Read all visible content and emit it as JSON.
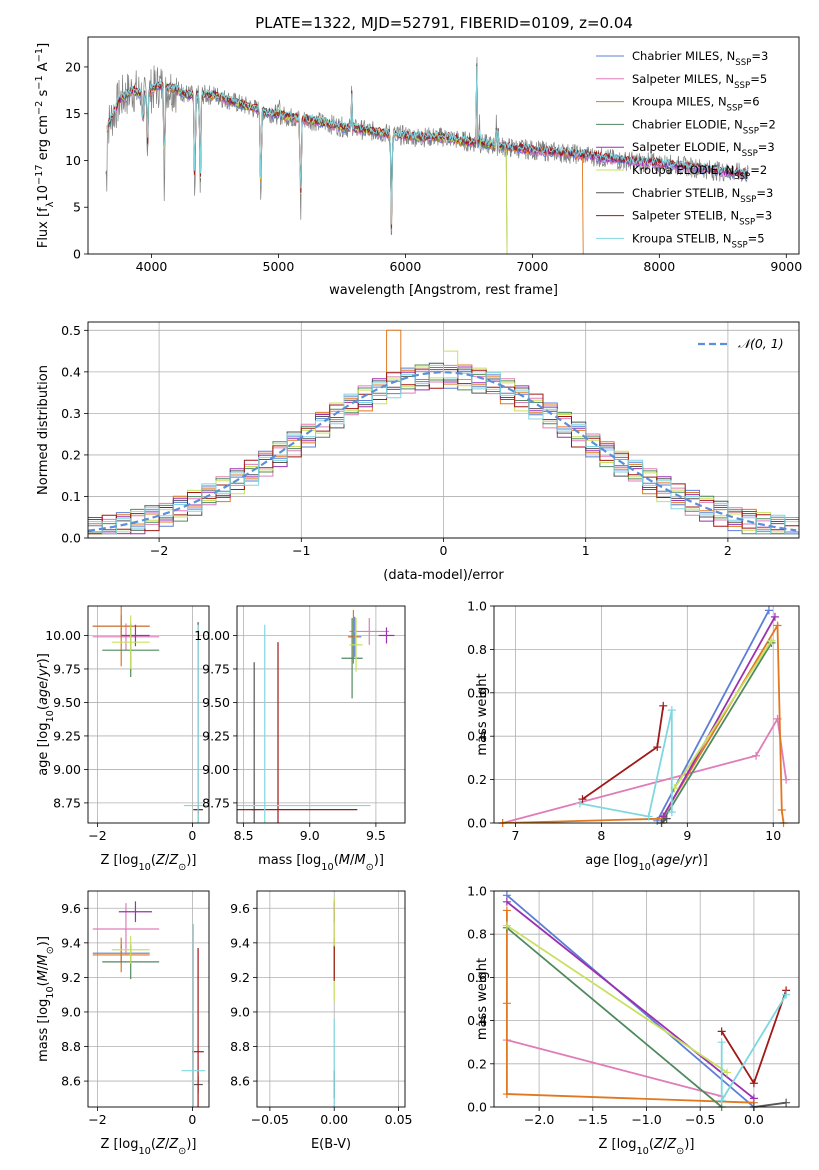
{
  "figure_title": "PLATE=1322, MJD=52791, FIBERID=0109, z=0.04",
  "colors": {
    "chabrier_miles": "#5b7fd6",
    "salpeter_miles": "#e07db8",
    "kroupa_miles": "#e07820",
    "chabrier_elodie": "#4f8a5e",
    "salpeter_elodie": "#9b30b0",
    "kroupa_elodie": "#c8e060",
    "chabrier_stelib": "#555555",
    "salpeter_stelib": "#a01818",
    "kroupa_stelib": "#7fd7e0",
    "spectrum": "#808080",
    "gaussian": "#5b8fd9",
    "grid": "#b0b0b0"
  },
  "chart_data": [
    {
      "id": "spectrum",
      "type": "line",
      "title": "PLATE=1322, MJD=52791, FIBERID=0109, z=0.04",
      "xlabel": "wavelength [Angstrom, rest frame]",
      "ylabel": "Flux [f_λ 10^-17 erg cm^-2 s^-1 A^-1]",
      "xlim": [
        3500,
        9100
      ],
      "ylim": [
        0,
        23.2
      ],
      "xticks": [
        4000,
        5000,
        6000,
        7000,
        8000,
        9000
      ],
      "yticks": [
        0,
        5,
        10,
        15,
        20
      ],
      "grid": false,
      "legend_position": "top-right",
      "legend": [
        {
          "main": "Chabrier MILES, N",
          "sub": "SSP",
          "tail": "=3",
          "color_key": "chabrier_miles"
        },
        {
          "main": "Salpeter MILES, N",
          "sub": "SSP",
          "tail": "=5",
          "color_key": "salpeter_miles"
        },
        {
          "main": "Kroupa MILES, N",
          "sub": "SSP",
          "tail": "=6",
          "color_key": "kroupa_miles"
        },
        {
          "main": "Chabrier ELODIE, N",
          "sub": "SSP",
          "tail": "=2",
          "color_key": "chabrier_elodie"
        },
        {
          "main": "Salpeter ELODIE, N",
          "sub": "SSP",
          "tail": "=3",
          "color_key": "salpeter_elodie"
        },
        {
          "main": "Kroupa ELODIE, N",
          "sub": "SSP",
          "tail": "=2",
          "color_key": "kroupa_elodie"
        },
        {
          "main": "Chabrier STELIB, N",
          "sub": "SSP",
          "tail": "=3",
          "color_key": "chabrier_stelib"
        },
        {
          "main": "Salpeter STELIB, N",
          "sub": "SSP",
          "tail": "=3",
          "color_key": "salpeter_stelib"
        },
        {
          "main": "Kroupa STELIB, N",
          "sub": "SSP",
          "tail": "=5",
          "color_key": "kroupa_stelib"
        }
      ],
      "continuum_points": [
        [
          3650,
          13.5
        ],
        [
          3750,
          16.5
        ],
        [
          3850,
          17.5
        ],
        [
          3950,
          17.0
        ],
        [
          4050,
          18.0
        ],
        [
          4150,
          17.8
        ],
        [
          4300,
          17.0
        ],
        [
          4500,
          17.0
        ],
        [
          4700,
          16.0
        ],
        [
          4900,
          15.2
        ],
        [
          5100,
          14.6
        ],
        [
          5300,
          14.2
        ],
        [
          5500,
          13.6
        ],
        [
          5700,
          13.2
        ],
        [
          5900,
          12.8
        ],
        [
          6100,
          12.5
        ],
        [
          6300,
          12.5
        ],
        [
          6500,
          12.0
        ],
        [
          6800,
          11.4
        ],
        [
          7100,
          11.0
        ],
        [
          7400,
          10.6
        ],
        [
          7700,
          10.0
        ],
        [
          8000,
          9.7
        ],
        [
          8300,
          9.2
        ],
        [
          8500,
          8.8
        ],
        [
          8700,
          8.6
        ]
      ],
      "dips": [
        [
          3934,
          4
        ],
        [
          3969,
          6
        ],
        [
          4102,
          11
        ],
        [
          4341,
          12
        ],
        [
          4384,
          11
        ],
        [
          4861,
          11
        ],
        [
          5175,
          11
        ],
        [
          5890,
          11
        ]
      ],
      "emission_lines": [
        [
          4861,
          17
        ],
        [
          5007,
          16.5
        ],
        [
          6563,
          22
        ],
        [
          6583,
          15
        ],
        [
          6716,
          14
        ],
        [
          6731,
          13.5
        ],
        [
          5577,
          18
        ]
      ],
      "model_cutoffs": [
        {
          "color_key": "kroupa_elodie",
          "end": 6800,
          "drop_to": 0
        },
        {
          "color_key": "kroupa_miles",
          "end": 7400,
          "drop_to": 0
        },
        {
          "color_key": "chabrier_elodie",
          "end": 6800,
          "drop_to": 0
        }
      ]
    },
    {
      "id": "residual_hist",
      "type": "line",
      "xlabel": "(data-model)/error",
      "ylabel": "Normed distribution",
      "xlim": [
        -2.5,
        2.5
      ],
      "ylim": [
        0,
        0.52
      ],
      "xticks": [
        -2,
        -1,
        0,
        1,
        2
      ],
      "yticks": [
        0.0,
        0.1,
        0.2,
        0.3,
        0.4,
        0.5
      ],
      "grid": true,
      "legend_position": "top-right",
      "legend": [
        {
          "label": "𝒩(0, 1)",
          "color_key": "gaussian"
        }
      ],
      "bin_width": 0.1,
      "jitter": [
        0.01,
        -0.02,
        0.03,
        -0.01,
        0.02,
        -0.03,
        0.015,
        -0.015,
        0.025,
        -0.005
      ],
      "highlight_bins": [
        {
          "series": 2,
          "x": -0.35,
          "y": 0.5
        },
        {
          "series": 5,
          "x": 0.05,
          "y": 0.45
        }
      ]
    },
    {
      "id": "age_vs_Z",
      "type": "scatter",
      "xlabel": "Z [log10(Z/Z⊙)]",
      "ylabel": "age [log10(age/yr)]",
      "xlim": [
        -2.2,
        0.35
      ],
      "ylim": [
        8.6,
        10.22
      ],
      "xticks": [
        -2,
        0
      ],
      "yticks": [
        8.75,
        9.0,
        9.25,
        9.5,
        9.75,
        10.0
      ],
      "grid": true,
      "points": [
        {
          "x": -1.5,
          "y": 10.07,
          "xerr": 0.6,
          "yerr": 0.08,
          "color_key": "chabrier_miles"
        },
        {
          "x": -1.4,
          "y": 9.99,
          "xerr": 0.7,
          "yerr": 0.1,
          "color_key": "salpeter_miles"
        },
        {
          "x": -1.5,
          "y": 10.07,
          "xerr": 0.6,
          "yerr": 0.3,
          "color_key": "kroupa_miles"
        },
        {
          "x": -1.3,
          "y": 9.89,
          "xerr": 0.6,
          "yerr": 0.2,
          "color_key": "chabrier_elodie"
        },
        {
          "x": -1.2,
          "y": 10.0,
          "xerr": 0.3,
          "yerr": 0.08,
          "color_key": "salpeter_elodie"
        },
        {
          "x": -1.3,
          "y": 9.95,
          "xerr": 0.4,
          "yerr": 0.2,
          "color_key": "kroupa_elodie"
        },
        {
          "x": 0.12,
          "y": 8.7,
          "xerr": 0.1,
          "yerr": 1.4,
          "color_key": "chabrier_stelib"
        },
        {
          "x": 0.12,
          "y": 8.7,
          "xerr": 0.1,
          "yerr": 0.03,
          "color_key": "salpeter_stelib"
        },
        {
          "x": 0.12,
          "y": 8.73,
          "xerr": 0.3,
          "yerr": 1.35,
          "color_key": "kroupa_stelib"
        }
      ]
    },
    {
      "id": "age_vs_mass",
      "type": "scatter",
      "xlabel": "mass [log10(M/M⊙)]",
      "ylabel": "",
      "xlim": [
        8.45,
        9.72
      ],
      "ylim": [
        8.6,
        10.22
      ],
      "xticks": [
        8.5,
        9.0,
        9.5
      ],
      "yticks": [
        8.75,
        9.0,
        9.25,
        9.5,
        9.75,
        10.0
      ],
      "grid": true,
      "points": [
        {
          "x": 9.34,
          "y": 9.99,
          "xerr": 0.05,
          "yerr": 0.15,
          "color_key": "chabrier_miles"
        },
        {
          "x": 9.45,
          "y": 10.03,
          "xerr": 0.15,
          "yerr": 0.1,
          "color_key": "salpeter_miles"
        },
        {
          "x": 9.33,
          "y": 9.99,
          "xerr": 0.04,
          "yerr": 0.2,
          "color_key": "kroupa_miles"
        },
        {
          "x": 9.32,
          "y": 9.83,
          "xerr": 0.08,
          "yerr": 0.3,
          "color_key": "chabrier_elodie"
        },
        {
          "x": 9.58,
          "y": 10.0,
          "xerr": 0.06,
          "yerr": 0.06,
          "color_key": "salpeter_elodie"
        },
        {
          "x": 9.35,
          "y": 9.93,
          "xerr": 0.05,
          "yerr": 0.2,
          "color_key": "kroupa_elodie"
        },
        {
          "x": 8.58,
          "y": 8.7,
          "xerr": 0.02,
          "yerr": 1.1,
          "color_key": "chabrier_stelib"
        },
        {
          "x": 8.76,
          "y": 8.7,
          "xerr": 0.6,
          "yerr": 1.25,
          "color_key": "salpeter_stelib"
        },
        {
          "x": 8.66,
          "y": 8.73,
          "xerr": 0.8,
          "yerr": 1.35,
          "color_key": "kroupa_stelib"
        }
      ]
    },
    {
      "id": "mw_vs_age",
      "type": "line",
      "xlabel": "age [log10(age/yr)]",
      "ylabel": "mass weight",
      "xlim": [
        6.75,
        10.3
      ],
      "ylim": [
        0,
        1.0
      ],
      "xticks": [
        7,
        8,
        9,
        10
      ],
      "yticks": [
        0.0,
        0.2,
        0.4,
        0.6,
        0.8,
        1.0
      ],
      "grid": true,
      "series": [
        {
          "color_key": "chabrier_miles",
          "x": [
            8.65,
            9.95
          ],
          "y": [
            0.01,
            0.98
          ]
        },
        {
          "color_key": "salpeter_miles",
          "x": [
            6.85,
            9.8,
            10.05,
            10.15
          ],
          "y": [
            0.0,
            0.31,
            0.48,
            0.2
          ]
        },
        {
          "color_key": "kroupa_miles",
          "x": [
            6.85,
            8.7,
            10.05,
            10.1,
            10.12
          ],
          "y": [
            0.0,
            0.02,
            0.91,
            0.06,
            0.0
          ]
        },
        {
          "color_key": "chabrier_elodie",
          "x": [
            8.7,
            9.98
          ],
          "y": [
            0.0,
            0.83
          ]
        },
        {
          "color_key": "salpeter_elodie",
          "x": [
            8.72,
            10.02
          ],
          "y": [
            0.03,
            0.95
          ]
        },
        {
          "color_key": "kroupa_elodie",
          "x": [
            8.85,
            9.98
          ],
          "y": [
            0.16,
            0.84
          ]
        },
        {
          "color_key": "chabrier_stelib",
          "x": [
            8.7,
            8.76
          ],
          "y": [
            0.0,
            0.02
          ]
        },
        {
          "color_key": "salpeter_stelib",
          "x": [
            7.78,
            8.65,
            8.72
          ],
          "y": [
            0.11,
            0.35,
            0.54
          ]
        },
        {
          "color_key": "kroupa_stelib",
          "x": [
            7.75,
            8.55,
            8.82,
            8.82
          ],
          "y": [
            0.09,
            0.03,
            0.52,
            0.05
          ]
        }
      ]
    },
    {
      "id": "mass_vs_Z",
      "type": "scatter",
      "xlabel": "Z [log10(Z/Z⊙)]",
      "ylabel": "mass [log10(M/M⊙)]",
      "xlim": [
        -2.2,
        0.35
      ],
      "ylim": [
        8.45,
        9.7
      ],
      "xticks": [
        -2,
        0
      ],
      "yticks": [
        8.6,
        8.8,
        9.0,
        9.2,
        9.4,
        9.6
      ],
      "grid": true,
      "points": [
        {
          "x": -1.5,
          "y": 9.34,
          "xerr": 0.6,
          "yerr": 0.05,
          "color_key": "chabrier_miles"
        },
        {
          "x": -1.4,
          "y": 9.48,
          "xerr": 0.7,
          "yerr": 0.15,
          "color_key": "salpeter_miles"
        },
        {
          "x": -1.5,
          "y": 9.33,
          "xerr": 0.6,
          "yerr": 0.1,
          "color_key": "kroupa_miles"
        },
        {
          "x": -1.3,
          "y": 9.29,
          "xerr": 0.6,
          "yerr": 0.1,
          "color_key": "chabrier_elodie"
        },
        {
          "x": -1.2,
          "y": 9.58,
          "xerr": 0.35,
          "yerr": 0.06,
          "color_key": "salpeter_elodie"
        },
        {
          "x": -1.3,
          "y": 9.36,
          "xerr": 0.4,
          "yerr": 0.08,
          "color_key": "kroupa_elodie"
        },
        {
          "x": 0.12,
          "y": 8.58,
          "xerr": 0.1,
          "yerr": 0.05,
          "color_key": "chabrier_stelib"
        },
        {
          "x": 0.12,
          "y": 8.77,
          "xerr": 0.12,
          "yerr": 0.6,
          "color_key": "salpeter_stelib"
        },
        {
          "x": 0.02,
          "y": 8.66,
          "xerr": 0.25,
          "yerr": 0.85,
          "color_key": "kroupa_stelib"
        }
      ]
    },
    {
      "id": "mass_vs_ebv",
      "type": "scatter",
      "xlabel": "E(B-V)",
      "ylabel": "",
      "xlim": [
        -0.06,
        0.055
      ],
      "ylim": [
        8.45,
        9.7
      ],
      "xticks": [
        -0.05,
        0.0,
        0.05
      ],
      "yticks": [
        8.6,
        8.8,
        9.0,
        9.2,
        9.4,
        9.6
      ],
      "grid": true,
      "points": [
        {
          "x": 0.0,
          "y": 9.34,
          "xerr": 0,
          "yerr": 0.05,
          "color_key": "chabrier_miles"
        },
        {
          "x": 0.0,
          "y": 9.48,
          "xerr": 0,
          "yerr": 0.15,
          "color_key": "salpeter_miles"
        },
        {
          "x": 0.0,
          "y": 9.33,
          "xerr": 0,
          "yerr": 0.1,
          "color_key": "kroupa_miles"
        },
        {
          "x": 0.0,
          "y": 9.29,
          "xerr": 0,
          "yerr": 0.1,
          "color_key": "chabrier_elodie"
        },
        {
          "x": 0.0,
          "y": 9.58,
          "xerr": 0,
          "yerr": 0.06,
          "color_key": "salpeter_elodie"
        },
        {
          "x": 0.0,
          "y": 9.36,
          "xerr": 0,
          "yerr": 0.3,
          "color_key": "kroupa_elodie"
        },
        {
          "x": 0.0,
          "y": 8.58,
          "xerr": 0,
          "yerr": 0.08,
          "color_key": "chabrier_stelib"
        },
        {
          "x": 0.0,
          "y": 9.28,
          "xerr": 0,
          "yerr": 0.1,
          "color_key": "salpeter_stelib"
        },
        {
          "x": 0.0,
          "y": 8.66,
          "xerr": 0,
          "yerr": 0.3,
          "color_key": "kroupa_stelib"
        }
      ]
    },
    {
      "id": "mw_vs_Z",
      "type": "line",
      "xlabel": "Z [log10(Z/Z⊙)]",
      "ylabel": "mass weight",
      "xlim": [
        -2.42,
        0.42
      ],
      "ylim": [
        0,
        1.0
      ],
      "xticks": [
        -2.0,
        -1.5,
        -1.0,
        -0.5,
        0.0
      ],
      "yticks": [
        0.0,
        0.2,
        0.4,
        0.6,
        0.8,
        1.0
      ],
      "grid": true,
      "series": [
        {
          "color_key": "chabrier_miles",
          "x": [
            -2.3,
            0.0
          ],
          "y": [
            0.98,
            0.0
          ]
        },
        {
          "color_key": "salpeter_miles",
          "x": [
            -2.3,
            -0.3
          ],
          "y": [
            0.31,
            0.05
          ]
        },
        {
          "color_key": "kroupa_miles",
          "x": [
            -2.3,
            -2.3,
            -2.3,
            0.0
          ],
          "y": [
            0.91,
            0.48,
            0.06,
            0.02
          ]
        },
        {
          "color_key": "chabrier_elodie",
          "x": [
            -2.3,
            -0.3
          ],
          "y": [
            0.83,
            0.0
          ]
        },
        {
          "color_key": "salpeter_elodie",
          "x": [
            -2.3,
            0.0
          ],
          "y": [
            0.95,
            0.04
          ]
        },
        {
          "color_key": "kroupa_elodie",
          "x": [
            -2.3,
            -0.25
          ],
          "y": [
            0.84,
            0.16
          ]
        },
        {
          "color_key": "chabrier_stelib",
          "x": [
            0.0,
            0.3
          ],
          "y": [
            0.0,
            0.02
          ]
        },
        {
          "color_key": "salpeter_stelib",
          "x": [
            -0.3,
            0.0,
            0.3
          ],
          "y": [
            0.35,
            0.11,
            0.54
          ]
        },
        {
          "color_key": "kroupa_stelib",
          "x": [
            -0.3,
            -0.3,
            0.3
          ],
          "y": [
            0.3,
            0.03,
            0.52
          ]
        }
      ]
    }
  ]
}
